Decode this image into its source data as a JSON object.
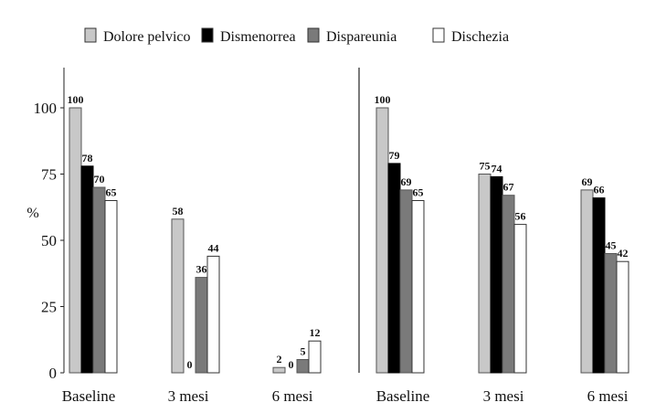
{
  "chart_data": [
    {
      "type": "bar",
      "ylabel": "%",
      "ylim": [
        0,
        100
      ],
      "yticks": [
        0,
        25,
        50,
        75,
        100
      ],
      "categories": [
        "Baseline",
        "3 mesi",
        "6 mesi"
      ],
      "series": [
        {
          "name": "Dolore pelvico",
          "values": [
            100,
            58,
            2
          ],
          "color": "#c8c8c8"
        },
        {
          "name": "Dismenorrea",
          "values": [
            78,
            0,
            0
          ],
          "color": "#000000"
        },
        {
          "name": "Dispareunia",
          "values": [
            70,
            36,
            5
          ],
          "color": "#7a7a7a"
        },
        {
          "name": "Dischezia",
          "values": [
            65,
            44,
            12
          ],
          "color": "#ffffff"
        }
      ],
      "data_labels": [
        [
          "100",
          "58",
          "2"
        ],
        [
          "78",
          "0",
          "0"
        ],
        [
          "70",
          "36",
          "5"
        ],
        [
          "65",
          "44",
          "12"
        ]
      ],
      "legend": "top",
      "grid": false
    },
    {
      "type": "bar",
      "ylim": [
        0,
        100
      ],
      "categories": [
        "Baseline",
        "3 mesi",
        "6 mesi"
      ],
      "series": [
        {
          "name": "Dolore pelvico",
          "values": [
            100,
            75,
            69
          ],
          "color": "#c8c8c8"
        },
        {
          "name": "Dismenorrea",
          "values": [
            79,
            74,
            66
          ],
          "color": "#000000"
        },
        {
          "name": "Dispareunia",
          "values": [
            69,
            67,
            45
          ],
          "color": "#7a7a7a"
        },
        {
          "name": "Dischezia",
          "values": [
            65,
            56,
            42
          ],
          "color": "#ffffff"
        }
      ],
      "data_labels": [
        [
          "100",
          "75",
          "69"
        ],
        [
          "79",
          "74",
          "66"
        ],
        [
          "69",
          "67",
          "45"
        ],
        [
          "65",
          "56",
          "42"
        ]
      ],
      "grid": false
    }
  ]
}
